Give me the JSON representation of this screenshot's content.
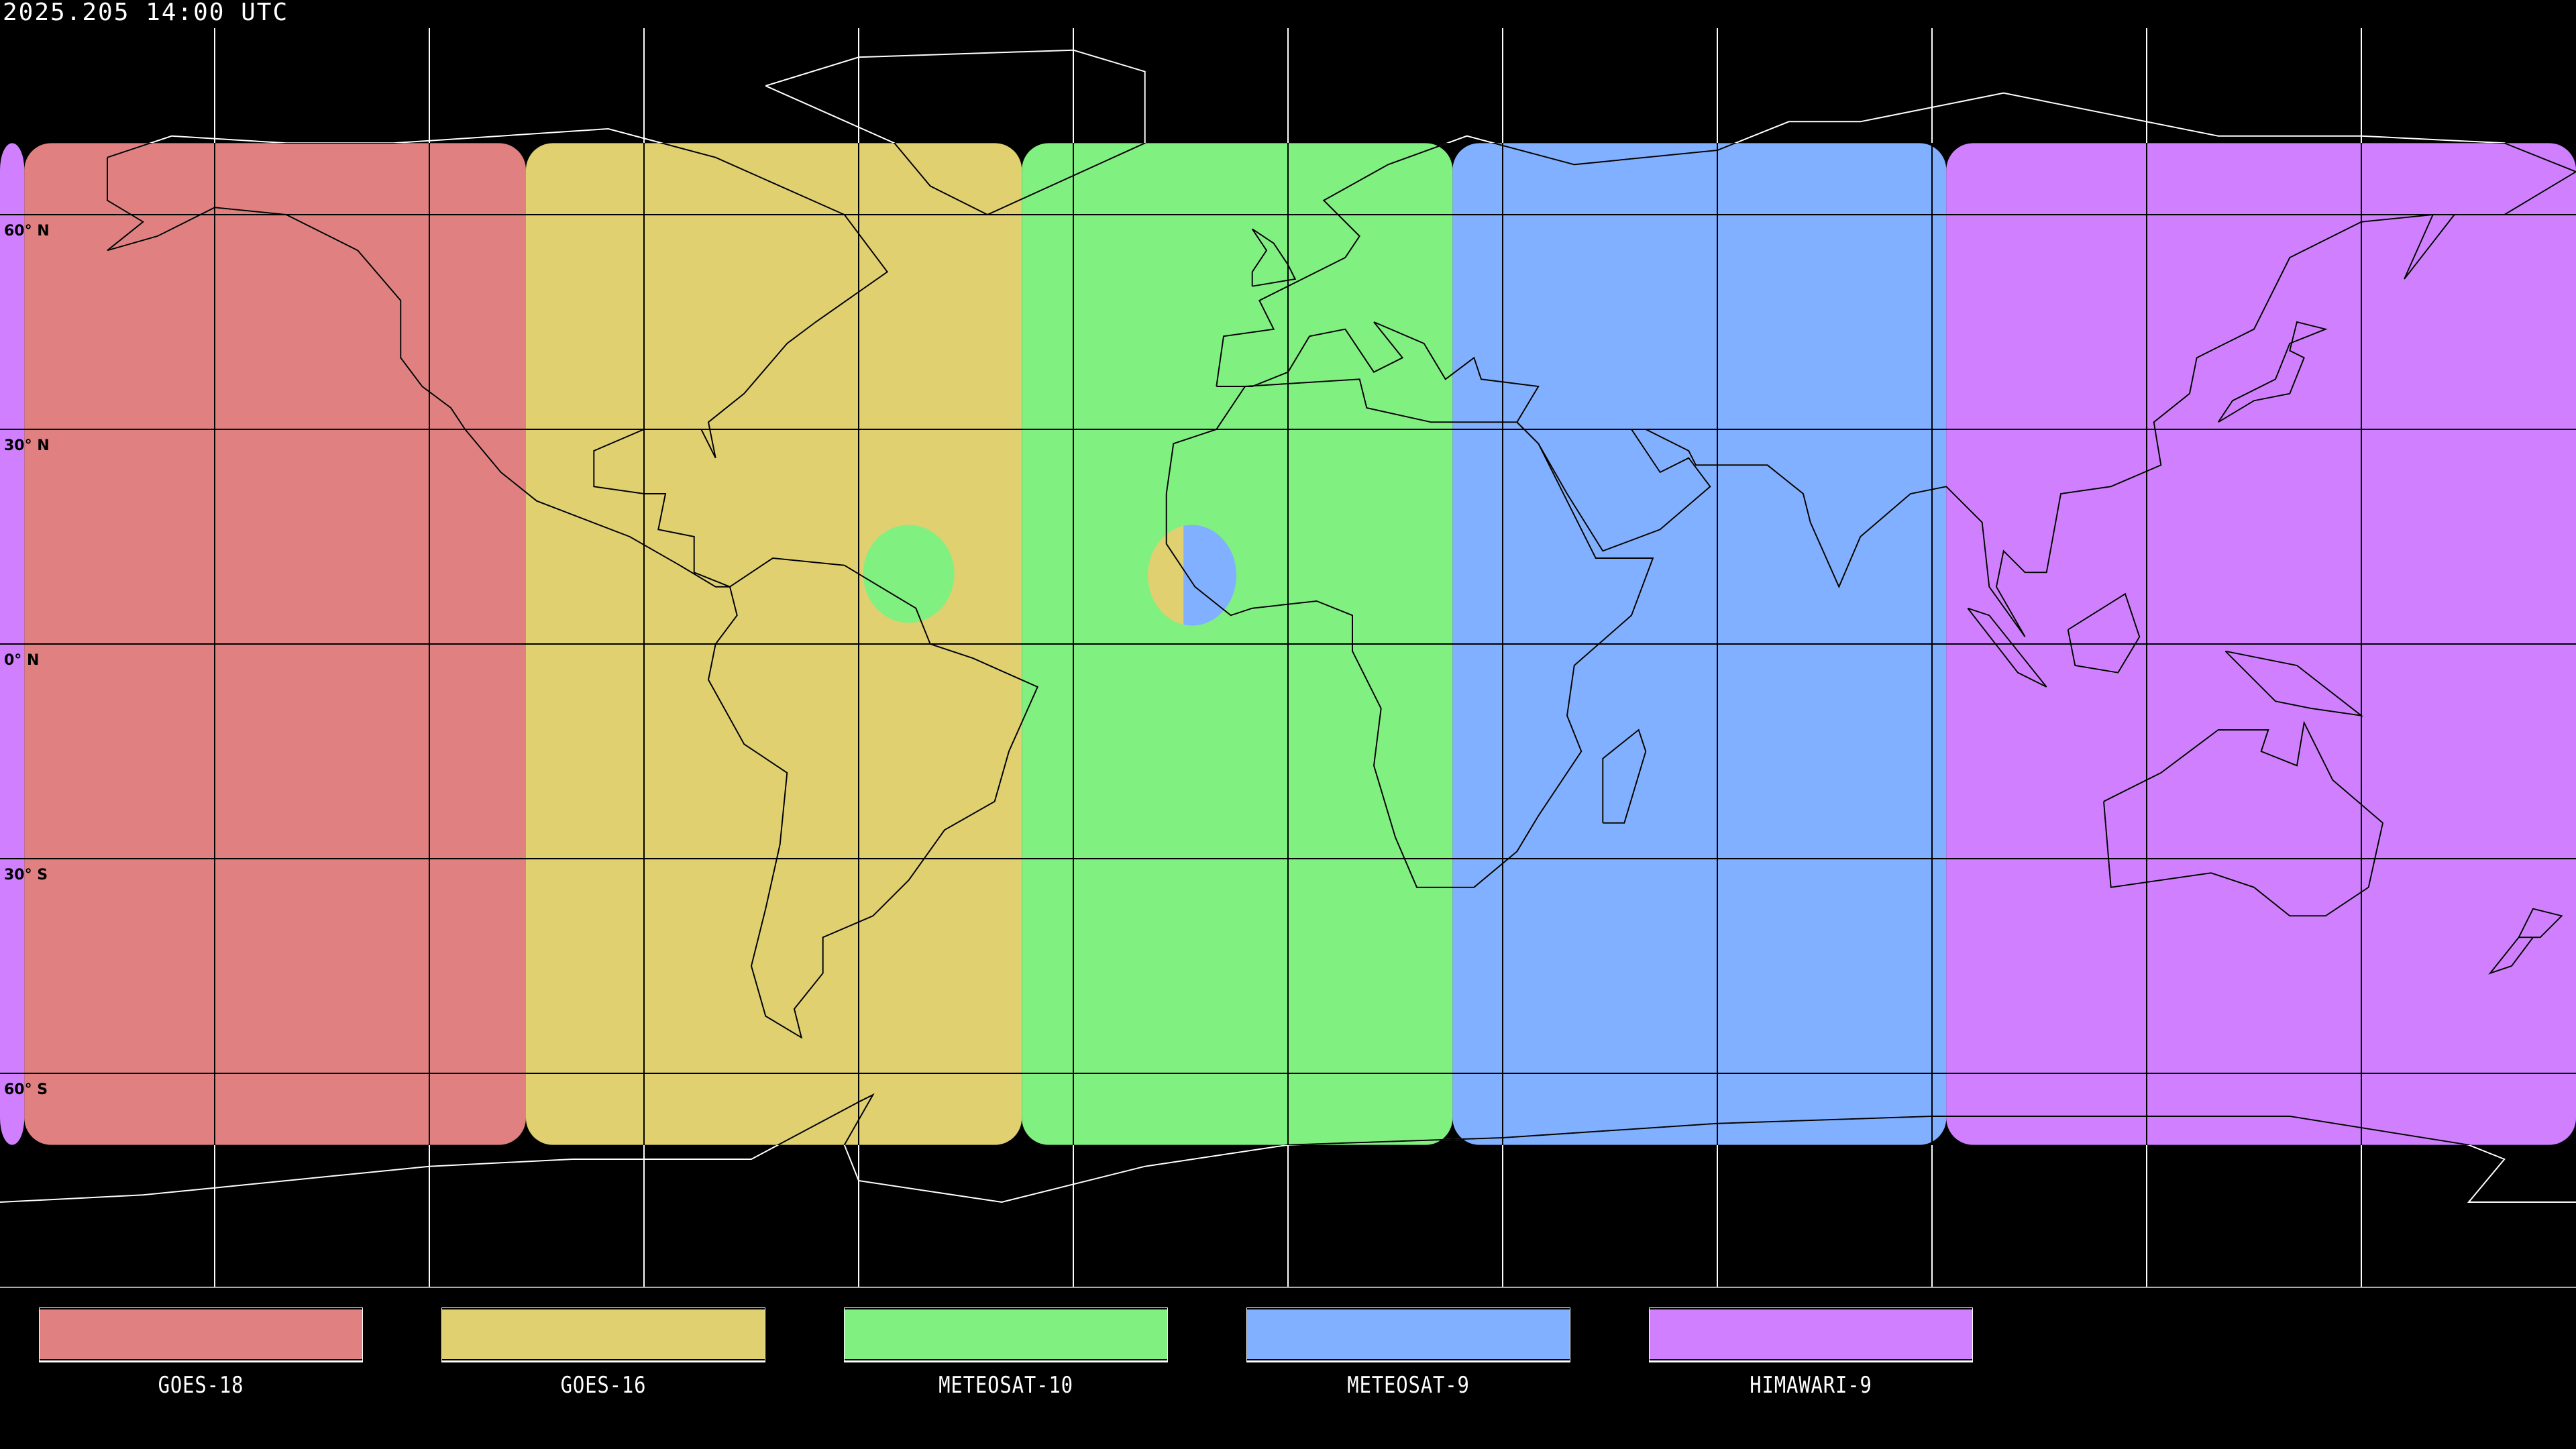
{
  "title": "2025.205 14:00 UTC",
  "map": {
    "projection": "equirectangular",
    "lon_range": [
      -180,
      180
    ],
    "lat_range": [
      -90,
      90
    ],
    "grid_spacing_deg": 30,
    "lat_labels": [
      "60° N",
      "30° N",
      "0° N",
      "30° S",
      "60° S"
    ],
    "coverage": [
      {
        "satellite": "GOES-18",
        "color": "#e08080",
        "lon": [
          -176.6,
          -106.5
        ],
        "lat": [
          -70,
          70
        ]
      },
      {
        "satellite": "GOES-16",
        "color": "#e0d070",
        "lon": [
          -106.5,
          -37.2
        ],
        "lat": [
          -70,
          70
        ]
      },
      {
        "satellite": "METEOSAT-10",
        "color": "#80f080",
        "lon": [
          -37.2,
          23
        ],
        "lat": [
          -70,
          70
        ]
      },
      {
        "satellite": "METEOSAT-9",
        "color": "#80b0ff",
        "lon": [
          23,
          92
        ],
        "lat": [
          -70,
          70
        ]
      },
      {
        "satellite": "HIMAWARI-9",
        "color": "#d080ff",
        "lon": [
          92,
          183.4
        ],
        "lat": [
          -70,
          70
        ]
      }
    ],
    "anomalies": [
      {
        "color": "#80f080",
        "center": [
          -53,
          9.8
        ]
      },
      {
        "color_left": "#e0d070",
        "color_right": "#80b0ff",
        "center": [
          -13.4,
          9.6
        ],
        "split_lon": -14.6
      }
    ]
  },
  "legend": [
    {
      "label": "GOES-18",
      "color": "#e08080"
    },
    {
      "label": "GOES-16",
      "color": "#e0d070"
    },
    {
      "label": "METEOSAT-10",
      "color": "#80f080"
    },
    {
      "label": "METEOSAT-9",
      "color": "#80b0ff"
    },
    {
      "label": "HIMAWARI-9",
      "color": "#d080ff"
    }
  ]
}
